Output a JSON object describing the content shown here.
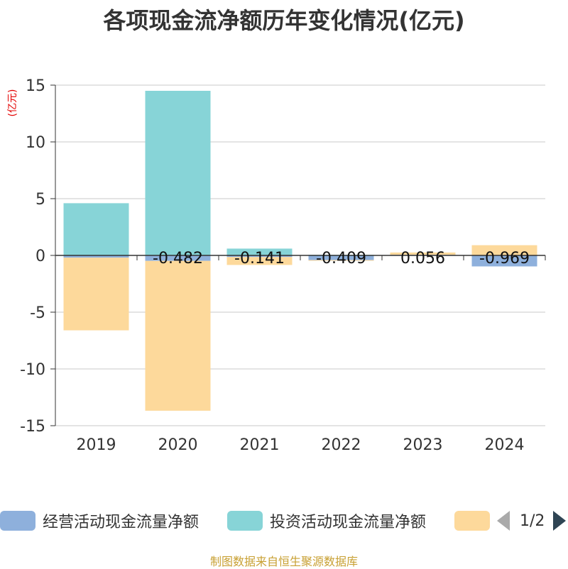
{
  "chart_data": {
    "type": "bar",
    "title": "各项现金流净额历年变化情况(亿元)",
    "ylabel": "(亿元)",
    "ylim": [
      -15,
      15
    ],
    "yticks": [
      15,
      10,
      5,
      0,
      -5,
      -10,
      -15
    ],
    "grid": true,
    "stacked": true,
    "categories": [
      "2019",
      "2020",
      "2021",
      "2022",
      "2023",
      "2024"
    ],
    "series": [
      {
        "name": "经营活动现金流量净额",
        "color": "#8eb0dc",
        "values": [
          -0.2,
          -0.482,
          -0.141,
          -0.409,
          0.056,
          -0.969
        ]
      },
      {
        "name": "投资活动现金流量净额",
        "color": "#87d4d7",
        "values": [
          4.6,
          14.5,
          0.6,
          0.05,
          0.0,
          0.0
        ]
      },
      {
        "name": "",
        "color": "#fdd99b",
        "values": [
          -6.4,
          -13.2,
          -0.7,
          -0.05,
          0.2,
          0.9
        ]
      }
    ],
    "data_labels": [
      "",
      "-0.482",
      "-0.141",
      "-0.409",
      "0.056",
      "-0.969"
    ],
    "legend_position": "bottom"
  },
  "legend": {
    "page": "1/2"
  },
  "source": "制图数据来自恒生聚源数据库"
}
